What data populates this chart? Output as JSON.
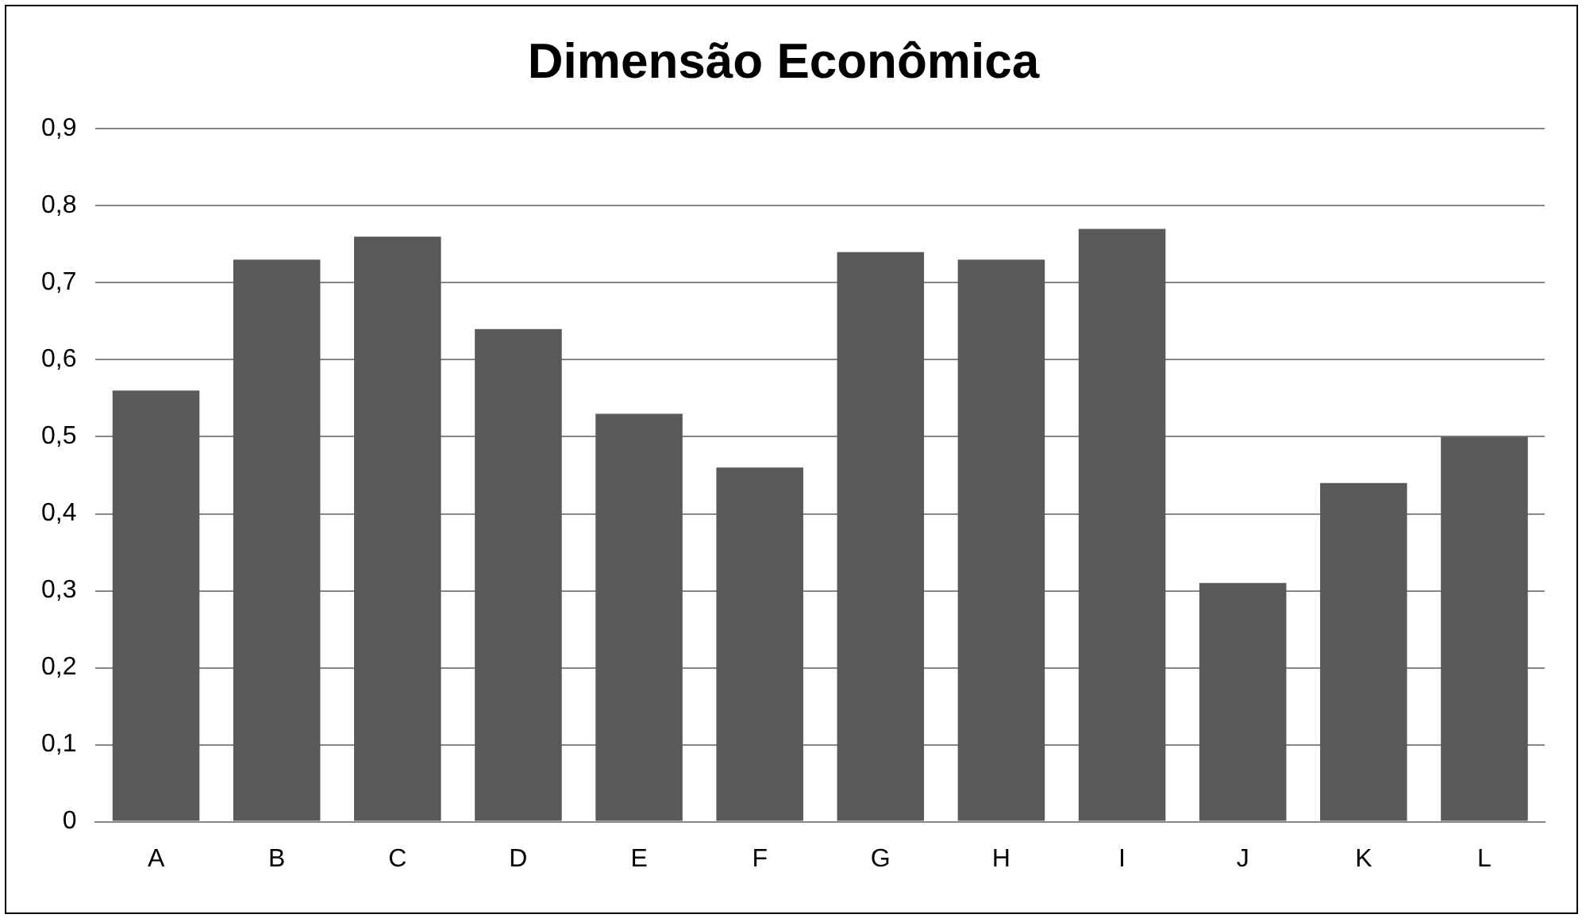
{
  "chart_data": {
    "type": "bar",
    "title": "Dimensão Econômica",
    "categories": [
      "A",
      "B",
      "C",
      "D",
      "E",
      "F",
      "G",
      "H",
      "I",
      "J",
      "K",
      "L"
    ],
    "values": [
      0.56,
      0.73,
      0.76,
      0.64,
      0.53,
      0.46,
      0.74,
      0.73,
      0.77,
      0.31,
      0.44,
      0.5
    ],
    "color": "#595959",
    "ylim": [
      0,
      0.9
    ],
    "yticks": [
      0,
      {
        "value": 0.1,
        "label": "0,1"
      },
      {
        "value": 0.2,
        "label": "0,2"
      },
      {
        "value": 0.3,
        "label": "0,3"
      },
      {
        "value": 0.4,
        "label": "0,4"
      },
      {
        "value": 0.5,
        "label": "0,5"
      },
      {
        "value": 0.6,
        "label": "0,6"
      },
      {
        "value": 0.7,
        "label": "0,7"
      },
      {
        "value": 0.8,
        "label": "0,8"
      },
      {
        "value": 0.9,
        "label": "0,9"
      }
    ],
    "grid": "y",
    "legend": false
  }
}
